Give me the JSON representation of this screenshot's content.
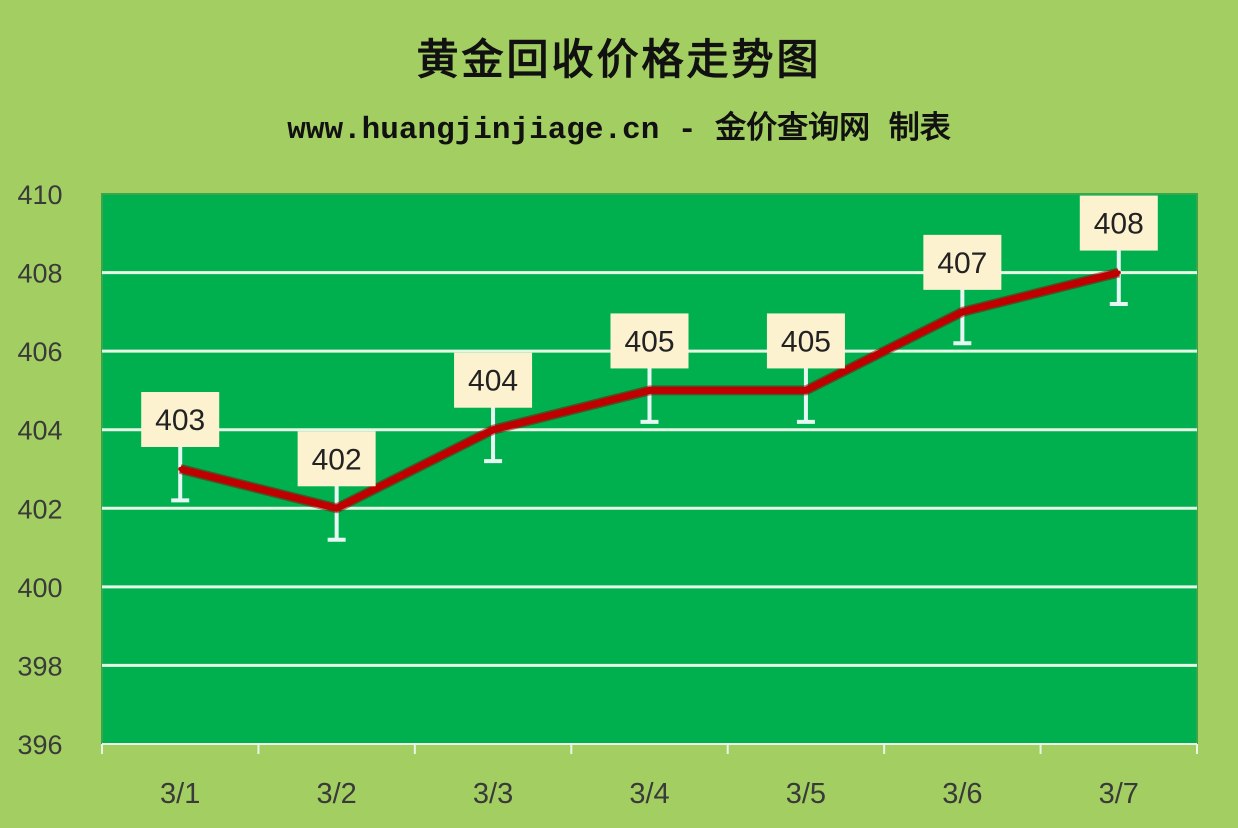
{
  "chart_data": {
    "type": "line",
    "title": "黄金回收价格走势图",
    "subtitle": "www.huangjinjiage.cn - 金价查询网 制表",
    "categories": [
      "3/1",
      "3/2",
      "3/3",
      "3/4",
      "3/5",
      "3/6",
      "3/7"
    ],
    "values": [
      403,
      402,
      404,
      405,
      405,
      407,
      408
    ],
    "error_minus": 0.8,
    "ylim": [
      396,
      410
    ],
    "yticks": [
      396,
      398,
      400,
      402,
      404,
      406,
      408,
      410
    ],
    "grid": true,
    "legend": "none",
    "data_labels": true,
    "colors": {
      "background": "#a3cf62",
      "plot_area": "#00b04f",
      "grid": "#e6f7e6",
      "line": "#c00000",
      "label_box": "#fdf2d0",
      "error_bar": "#e6f7f3"
    }
  }
}
